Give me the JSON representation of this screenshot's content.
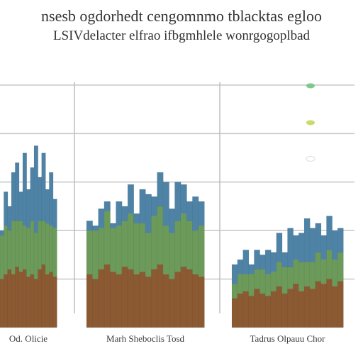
{
  "chart_data": {
    "type": "bar",
    "title": "nsesb ogdorhedt cengomnmo tblacktas egloo",
    "subtitle": "LSIVdelacter elfrao ifbgmhlele wonrgogoplbad",
    "categories": [
      "Od. Olicie",
      "Marh Sheboclis Tosd",
      "Tadrus Olpauu Chor"
    ],
    "ylim": [
      0,
      100
    ],
    "yticks": [
      0,
      20,
      40,
      60,
      80,
      100
    ],
    "ytick_labels": [
      "",
      "",
      "",
      "",
      "",
      ""
    ],
    "stacked": true,
    "legend": {
      "position": "right",
      "entries": [
        {
          "name": "",
          "color": "#7cc98a"
        },
        {
          "name": "",
          "color": "#c8dc6a"
        },
        {
          "name": "",
          "color": "#ffffff"
        }
      ]
    },
    "series": [
      {
        "name": "",
        "color": "#8b5a32",
        "groups": [
          [
            20,
            22,
            24,
            22,
            25,
            23,
            24,
            21,
            22,
            20,
            24,
            26,
            22,
            23,
            21
          ],
          [
            22,
            20,
            24,
            26,
            23,
            22,
            25,
            24,
            22,
            23,
            21,
            24,
            26,
            22,
            20,
            23,
            25,
            24,
            22,
            21
          ],
          [
            12,
            14,
            15,
            13,
            16,
            14,
            13,
            15,
            17,
            14,
            16,
            18,
            15,
            17,
            16,
            19,
            18,
            20,
            17,
            19
          ]
        ]
      },
      {
        "name": "",
        "color": "#6b9a5a",
        "groups": [
          [
            18,
            20,
            16,
            22,
            19,
            21,
            18,
            20,
            22,
            19,
            20,
            18,
            21,
            19,
            20
          ],
          [
            18,
            20,
            17,
            22,
            18,
            20,
            19,
            23,
            21,
            20,
            18,
            22,
            24,
            20,
            19,
            21,
            22,
            20,
            18,
            21
          ],
          [
            6,
            8,
            7,
            9,
            8,
            10,
            9,
            8,
            10,
            11,
            9,
            10,
            12,
            10,
            11,
            12,
            10,
            12,
            11,
            12
          ]
        ]
      },
      {
        "name": "",
        "color": "#4f83a6",
        "groups": [
          [
            2,
            14,
            10,
            20,
            24,
            12,
            30,
            16,
            22,
            36,
            18,
            28,
            14,
            22,
            12
          ],
          [
            4,
            2,
            8,
            4,
            2,
            10,
            6,
            12,
            4,
            14,
            16,
            8,
            14,
            18,
            10,
            16,
            12,
            8,
            14,
            10
          ],
          [
            8,
            6,
            10,
            4,
            8,
            6,
            10,
            8,
            12,
            6,
            16,
            10,
            12,
            18,
            14,
            12,
            10,
            14,
            12,
            10
          ]
        ]
      }
    ]
  }
}
